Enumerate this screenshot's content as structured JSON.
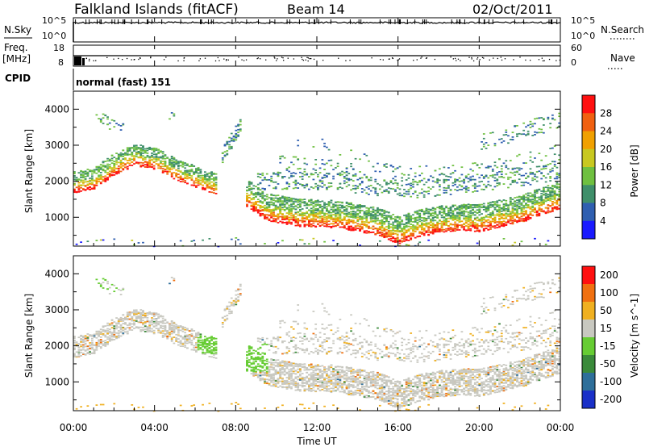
{
  "header": {
    "station": "Falkland Islands (fitACF)",
    "beam": "Beam 14",
    "date": "02/Oct/2011"
  },
  "side_labels": {
    "nsky": "N.Sky",
    "freq": "Freq.",
    "freq_unit": "[MHz]",
    "cpid": "CPID",
    "nsearch": "N.Search",
    "nave": "Nave"
  },
  "small_axes": {
    "nsky_top": "10^5",
    "nsky_bottom": "10^0",
    "freq_top": "18",
    "freq_bottom": "8",
    "nsearch_top": "10^5",
    "nsearch_bottom": "10^0",
    "nave_top": "60",
    "nave_bottom": "0"
  },
  "cpid_text": "normal (fast) 151",
  "x_axis": {
    "label": "Time UT",
    "ticks": [
      "00:00",
      "04:00",
      "08:00",
      "12:00",
      "16:00",
      "20:00",
      "00:00"
    ]
  },
  "chart_data": [
    {
      "type": "heatmap",
      "name": "power",
      "ylabel": "Slant Range [km]",
      "ylim": [
        200,
        4500
      ],
      "yticks": [
        "1000",
        "2000",
        "3000",
        "4000"
      ],
      "colorbar_label": "Power [dB]",
      "colorbar_ticks": [
        "4",
        "8",
        "12",
        "16",
        "20",
        "24",
        "28"
      ],
      "colors": [
        "#1a1aff",
        "#2f5fb0",
        "#3f8f6a",
        "#6fc040",
        "#c8c820",
        "#f0a000",
        "#f06010",
        "#ff1010"
      ]
    },
    {
      "type": "heatmap",
      "name": "velocity",
      "ylabel": "Slant Range [km]",
      "ylim": [
        200,
        4500
      ],
      "yticks": [
        "1000",
        "2000",
        "3000",
        "4000"
      ],
      "colorbar_label": "Velocity [m s^-1]",
      "colorbar_ticks": [
        "200",
        "100",
        "50",
        "15",
        "-15",
        "-50",
        "-100",
        "-200"
      ],
      "colors": [
        "#1a30c8",
        "#2e6f9a",
        "#3a8a3a",
        "#66cc33",
        "#c8c8c0",
        "#f0b020",
        "#f07010",
        "#ff1010"
      ]
    }
  ]
}
